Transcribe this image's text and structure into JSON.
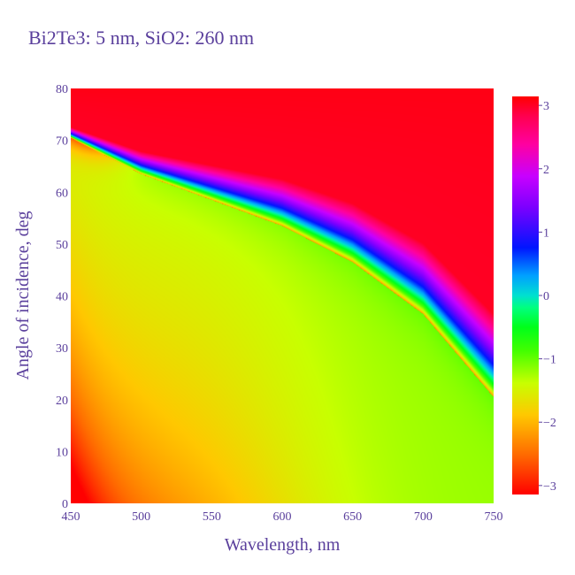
{
  "chart_data": {
    "type": "heatmap",
    "title": "Bi2Te3: 5 nm, SiO2: 260 nm",
    "xlabel": "Wavelength, nm",
    "ylabel": "Angle of incidence, deg",
    "xlim": [
      450,
      750
    ],
    "ylim": [
      0,
      80
    ],
    "zlim": [
      -3.14159,
      3.14159
    ],
    "x_ticks": [
      450,
      500,
      550,
      600,
      650,
      700,
      750
    ],
    "y_ticks": [
      0,
      10,
      20,
      30,
      40,
      50,
      60,
      70,
      80
    ],
    "colorbar_ticks": [
      {
        "value": 3,
        "label": "3"
      },
      {
        "value": 2,
        "label": "2"
      },
      {
        "value": 1,
        "label": "1"
      },
      {
        "value": 0,
        "label": "0"
      },
      {
        "value": -1,
        "label": "−1"
      },
      {
        "value": -2,
        "label": "−2"
      },
      {
        "value": -3,
        "label": "−3"
      }
    ],
    "colorscale": [
      [
        0.0,
        "#ff0000"
      ],
      [
        0.1,
        "#ff6a00"
      ],
      [
        0.2,
        "#ffc800"
      ],
      [
        0.28,
        "#c8ff00"
      ],
      [
        0.36,
        "#44ff00"
      ],
      [
        0.42,
        "#00ff1a"
      ],
      [
        0.47,
        "#00ff80"
      ],
      [
        0.5,
        "#00e0d0"
      ],
      [
        0.55,
        "#00a0ff"
      ],
      [
        0.62,
        "#0015ff"
      ],
      [
        0.72,
        "#7a00ff"
      ],
      [
        0.8,
        "#c800ff"
      ],
      [
        0.88,
        "#ff00a0"
      ],
      [
        0.95,
        "#ff0050"
      ],
      [
        1.0,
        "#ff0000"
      ]
    ],
    "phase_model": {
      "branch_cut_points": [
        [
          450,
          70.5
        ],
        [
          500,
          63.5
        ],
        [
          550,
          58.5
        ],
        [
          600,
          53.5
        ],
        [
          650,
          46.5
        ],
        [
          700,
          36.5
        ],
        [
          750,
          20.5
        ]
      ],
      "above_cut_at_cut": -2.5,
      "above_cut_at_top": 3.0,
      "below_cut_base": -1.2,
      "below_cut_near_cut": -1.0
    }
  }
}
